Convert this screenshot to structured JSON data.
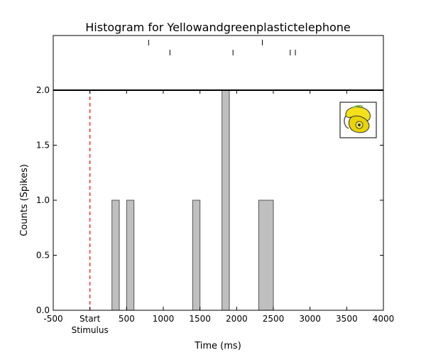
{
  "chart_data": {
    "type": "bar",
    "title": "Histogram for Yellowandgreenplastictelephone",
    "xlabel": "Time (ms)",
    "ylabel": "Counts (Spikes)",
    "xlim": [
      -500,
      4000
    ],
    "ylim": [
      0,
      2.0
    ],
    "x_ticks": [
      {
        "value": -500,
        "label": "-500"
      },
      {
        "value": 0,
        "label": "Start",
        "sublabel": "Stimulus"
      },
      {
        "value": 500,
        "label": "500"
      },
      {
        "value": 1000,
        "label": "1000"
      },
      {
        "value": 1500,
        "label": "1500"
      },
      {
        "value": 2000,
        "label": "2000"
      },
      {
        "value": 2500,
        "label": "2500"
      },
      {
        "value": 3000,
        "label": "3000"
      },
      {
        "value": 3500,
        "label": "3500"
      },
      {
        "value": 4000,
        "label": "4000"
      }
    ],
    "y_ticks": [
      {
        "value": 0.0,
        "label": "0.0"
      },
      {
        "value": 0.5,
        "label": "0.5"
      },
      {
        "value": 1.0,
        "label": "1.0"
      },
      {
        "value": 1.5,
        "label": "1.5"
      },
      {
        "value": 2.0,
        "label": "2.0"
      }
    ],
    "bars": [
      {
        "x0": 300,
        "x1": 400,
        "count": 1
      },
      {
        "x0": 500,
        "x1": 600,
        "count": 1
      },
      {
        "x0": 1400,
        "x1": 1500,
        "count": 1
      },
      {
        "x0": 1800,
        "x1": 1900,
        "count": 2
      },
      {
        "x0": 2300,
        "x1": 2500,
        "count": 1
      }
    ],
    "raster_row1": [
      800,
      2350
    ],
    "raster_row2": [
      1090,
      1950,
      2730,
      2800
    ],
    "stimulus_onset": 0,
    "bar_color": "#bfbfbf",
    "stimulus_line_color": "#ff0000",
    "grid": false
  },
  "colors": {
    "axis": "#000000",
    "bar_edge": "#555555"
  },
  "thumbnail": {
    "icon": "yellow-green-plastic-telephone-icon"
  }
}
